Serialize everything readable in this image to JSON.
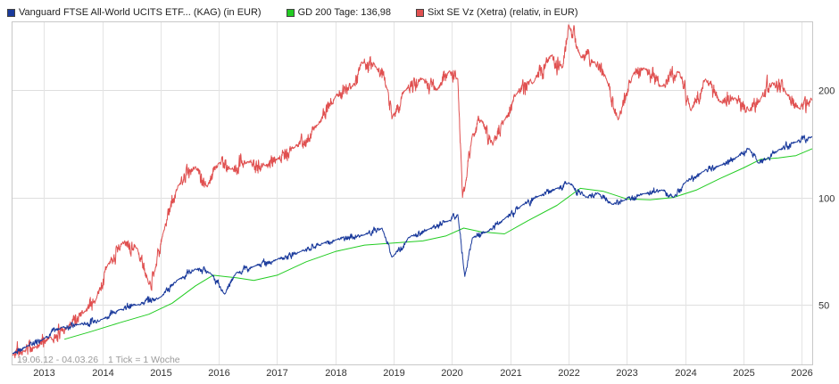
{
  "chart_data": {
    "type": "line",
    "legend": [
      {
        "label": "Vanguard FTSE All-World UCITS ETF... (KAG) (in EUR)",
        "color": "#1a3a9c"
      },
      {
        "label": "GD 200 Tage: 136,98",
        "color": "#22cc22"
      },
      {
        "label": "Sixt SE Vz (Xetra) (relativ, in EUR)",
        "color": "#e05050"
      }
    ],
    "y_scale": "log",
    "ylim": [
      34,
      310
    ],
    "y_ticks": [
      {
        "value": 50,
        "label": "50"
      },
      {
        "value": 100,
        "label": "100"
      },
      {
        "value": 200,
        "label": "200"
      }
    ],
    "x_range": [
      2012.46,
      2026.18
    ],
    "x_ticks": [
      "2013",
      "2014",
      "2015",
      "2016",
      "2017",
      "2018",
      "2019",
      "2020",
      "2021",
      "2022",
      "2023",
      "2024",
      "2025",
      "2026"
    ],
    "range_label": "19.06.12 - 04.03.26",
    "tick_label": "1 Tick = 1 Woche",
    "grid": true,
    "series": [
      {
        "name": "Vanguard FTSE All-World UCITS ETF... (KAG) (in EUR)",
        "color": "#1a3a9c",
        "x": [
          2012.46,
          2012.7,
          2013.0,
          2013.3,
          2013.6,
          2014.0,
          2014.3,
          2014.6,
          2015.0,
          2015.3,
          2015.6,
          2015.85,
          2016.1,
          2016.3,
          2016.6,
          2017.0,
          2017.4,
          2017.8,
          2018.0,
          2018.5,
          2018.8,
          2018.97,
          2019.3,
          2019.6,
          2019.95,
          2020.1,
          2020.22,
          2020.35,
          2020.6,
          2020.9,
          2021.2,
          2021.5,
          2021.8,
          2022.0,
          2022.3,
          2022.5,
          2022.75,
          2022.95,
          2023.3,
          2023.6,
          2023.8,
          2024.0,
          2024.3,
          2024.6,
          2024.9,
          2025.1,
          2025.25,
          2025.4,
          2025.6,
          2025.9,
          2026.18
        ],
        "y": [
          36.5,
          38.2,
          40.2,
          43.2,
          44.0,
          45.5,
          48.5,
          50.0,
          52.5,
          58.8,
          63.0,
          61.5,
          53.5,
          61.5,
          64.0,
          67.0,
          70.5,
          74.5,
          76.0,
          78.5,
          82.0,
          68.0,
          78.0,
          81.5,
          86.0,
          89.5,
          60.0,
          77.0,
          80.0,
          87.0,
          95.0,
          101.0,
          106.0,
          110.0,
          100.0,
          103.0,
          95.5,
          98.0,
          102.5,
          105.0,
          100.0,
          110.0,
          118.0,
          123.0,
          130.0,
          137.0,
          125.0,
          128.0,
          136.0,
          143.0,
          148.0
        ]
      },
      {
        "name": "GD 200 Tage: 136,98",
        "color": "#22cc22",
        "x": [
          2013.35,
          2013.8,
          2014.3,
          2014.8,
          2015.2,
          2015.6,
          2015.9,
          2016.3,
          2016.6,
          2017.0,
          2017.5,
          2018.0,
          2018.5,
          2019.0,
          2019.5,
          2019.9,
          2020.2,
          2020.5,
          2020.9,
          2021.3,
          2021.8,
          2022.2,
          2022.6,
          2023.0,
          2023.4,
          2023.8,
          2024.2,
          2024.6,
          2025.0,
          2025.3,
          2025.6,
          2025.9,
          2026.18
        ],
        "y": [
          40.0,
          42.0,
          44.5,
          47.0,
          50.5,
          56.5,
          60.5,
          59.5,
          58.5,
          60.5,
          66.0,
          70.5,
          73.5,
          74.5,
          75.5,
          78.0,
          82.0,
          80.0,
          79.0,
          86.0,
          95.0,
          106.0,
          104.0,
          99.0,
          98.5,
          100.0,
          105.0,
          113.0,
          121.0,
          128.0,
          129.0,
          131.0,
          137.0
        ]
      },
      {
        "name": "Sixt SE Vz (Xetra) (relativ, in EUR)",
        "color": "#e05050",
        "x": [
          2012.46,
          2012.65,
          2012.85,
          2013.1,
          2013.4,
          2013.7,
          2013.9,
          2014.1,
          2014.35,
          2014.6,
          2014.8,
          2014.9,
          2015.05,
          2015.3,
          2015.6,
          2015.8,
          2016.0,
          2016.2,
          2016.5,
          2016.8,
          2017.0,
          2017.3,
          2017.7,
          2018.0,
          2018.3,
          2018.45,
          2018.7,
          2018.9,
          2018.97,
          2019.2,
          2019.5,
          2019.75,
          2019.95,
          2020.1,
          2020.18,
          2020.22,
          2020.35,
          2020.5,
          2020.7,
          2020.9,
          2021.1,
          2021.4,
          2021.7,
          2021.9,
          2022.0,
          2022.2,
          2022.45,
          2022.65,
          2022.85,
          2023.1,
          2023.3,
          2023.6,
          2023.9,
          2024.1,
          2024.35,
          2024.6,
          2024.85,
          2025.1,
          2025.3,
          2025.5,
          2025.75,
          2025.95,
          2026.18
        ],
        "y": [
          36.0,
          37.0,
          38.0,
          40.5,
          43.0,
          48.0,
          52.0,
          65.0,
          75.0,
          72.0,
          57.0,
          62.0,
          80.0,
          108.0,
          122.0,
          107.0,
          125.0,
          120.0,
          126.0,
          123.0,
          128.0,
          138.0,
          160.0,
          192.0,
          205.0,
          240.0,
          232.0,
          200.0,
          166.0,
          200.0,
          215.0,
          200.0,
          226.0,
          215.0,
          100.0,
          106.0,
          150.0,
          165.0,
          140.0,
          165.0,
          195.0,
          210.0,
          250.0,
          232.0,
          305.0,
          250.0,
          240.0,
          215.0,
          165.0,
          220.0,
          230.0,
          205.0,
          225.0,
          175.0,
          215.0,
          185.0,
          190.0,
          175.0,
          190.0,
          210.0,
          195.0,
          178.0,
          188.0
        ]
      }
    ]
  }
}
